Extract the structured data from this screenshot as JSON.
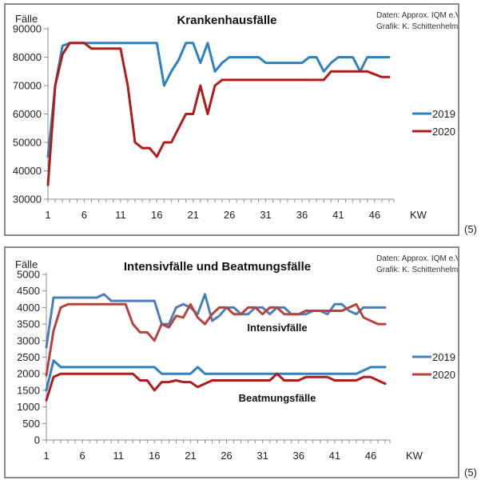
{
  "footnote_ref": "(5)",
  "source": {
    "line1": "Daten: Approx. IQM e.V.",
    "line2": "Grafik: K. Schittenhelm"
  },
  "colors": {
    "top_2019": "#2e82c0",
    "top_2020": "#b01c1c",
    "bottom_int_2019": "#4a7fbb",
    "bottom_int_2020": "#b5443f",
    "bottom_beat_2019": "#2e82c0",
    "bottom_beat_2020": "#b01c1c"
  },
  "chart_data": [
    {
      "type": "line",
      "title": "Krankenhausfälle",
      "ylabel": "Fälle",
      "xlabel": "KW",
      "ylim": [
        30000,
        90000
      ],
      "yticks": [
        30000,
        40000,
        50000,
        60000,
        70000,
        80000,
        90000
      ],
      "ytick_labels": [
        "30000",
        "40000",
        "50000",
        "60000",
        "70000",
        "80000",
        "90000"
      ],
      "xlim": [
        1,
        48
      ],
      "xtick_labels": [
        "1",
        "6",
        "11",
        "16",
        "21",
        "26",
        "31",
        "36",
        "41",
        "46"
      ],
      "xticks": [
        1,
        6,
        11,
        16,
        21,
        26,
        31,
        36,
        41,
        46
      ],
      "grid": false,
      "legend_position": "right",
      "x": [
        1,
        2,
        3,
        4,
        5,
        6,
        7,
        8,
        9,
        10,
        11,
        12,
        13,
        14,
        15,
        16,
        17,
        18,
        19,
        20,
        21,
        22,
        23,
        24,
        25,
        26,
        27,
        28,
        29,
        30,
        31,
        32,
        33,
        34,
        35,
        36,
        37,
        38,
        39,
        40,
        41,
        42,
        43,
        44,
        45,
        46,
        47,
        48
      ],
      "series": [
        {
          "name": "2019",
          "values": [
            45000,
            70000,
            84000,
            85000,
            85000,
            85000,
            85000,
            85000,
            85000,
            85000,
            85000,
            85000,
            85000,
            85000,
            85000,
            85000,
            70000,
            75000,
            79000,
            85000,
            85000,
            78000,
            85000,
            75000,
            78000,
            80000,
            80000,
            80000,
            80000,
            80000,
            78000,
            78000,
            78000,
            78000,
            78000,
            78000,
            80000,
            80000,
            75000,
            78000,
            80000,
            80000,
            80000,
            75000,
            80000,
            80000,
            80000,
            80000
          ]
        },
        {
          "name": "2020",
          "values": [
            35000,
            70000,
            81000,
            85000,
            85000,
            85000,
            83000,
            83000,
            83000,
            83000,
            83000,
            70000,
            50000,
            48000,
            48000,
            45000,
            50000,
            50000,
            55000,
            60000,
            60000,
            70000,
            60000,
            70000,
            72000,
            72000,
            72000,
            72000,
            72000,
            72000,
            72000,
            72000,
            72000,
            72000,
            72000,
            72000,
            72000,
            72000,
            72000,
            75000,
            75000,
            75000,
            75000,
            75000,
            75000,
            74000,
            73000,
            73000
          ]
        }
      ]
    },
    {
      "type": "line",
      "title": "Intensivfälle und Beatmungsfälle",
      "ylabel": "Fälle",
      "xlabel": "KW",
      "ylim": [
        0,
        5000
      ],
      "yticks": [
        0,
        500,
        1000,
        1500,
        2000,
        2500,
        3000,
        3500,
        4000,
        4500,
        5000
      ],
      "ytick_labels": [
        "0",
        "500",
        "1000",
        "1500",
        "2000",
        "2500",
        "3000",
        "3500",
        "4000",
        "4500",
        "5000"
      ],
      "xlim": [
        1,
        48
      ],
      "xticks": [
        1,
        6,
        11,
        16,
        21,
        26,
        31,
        36,
        41,
        46
      ],
      "xtick_labels": [
        "1",
        "6",
        "11",
        "16",
        "21",
        "26",
        "31",
        "36",
        "41",
        "46"
      ],
      "grid": false,
      "legend_position": "right",
      "annotations": [
        "Intensivfälle",
        "Beatmungsfälle"
      ],
      "x": [
        1,
        2,
        3,
        4,
        5,
        6,
        7,
        8,
        9,
        10,
        11,
        12,
        13,
        14,
        15,
        16,
        17,
        18,
        19,
        20,
        21,
        22,
        23,
        24,
        25,
        26,
        27,
        28,
        29,
        30,
        31,
        32,
        33,
        34,
        35,
        36,
        37,
        38,
        39,
        40,
        41,
        42,
        43,
        44,
        45,
        46,
        47,
        48
      ],
      "series": [
        {
          "name": "2019",
          "group": "Intensivfälle",
          "values": [
            2800,
            4300,
            4300,
            4300,
            4300,
            4300,
            4300,
            4300,
            4400,
            4200,
            4200,
            4200,
            4200,
            4200,
            4200,
            4200,
            3500,
            3500,
            4000,
            4100,
            4000,
            3800,
            4400,
            3600,
            3750,
            4000,
            4000,
            3800,
            3800,
            4000,
            4000,
            3800,
            4000,
            4000,
            3800,
            3800,
            3800,
            3900,
            3900,
            3800,
            4100,
            4100,
            3900,
            3800,
            4000,
            4000,
            4000,
            4000
          ]
        },
        {
          "name": "2020",
          "group": "Intensivfälle",
          "values": [
            1950,
            3300,
            4000,
            4100,
            4100,
            4100,
            4100,
            4100,
            4100,
            4100,
            4100,
            4100,
            3500,
            3250,
            3250,
            3000,
            3500,
            3400,
            3750,
            3700,
            4100,
            3700,
            3500,
            3800,
            4000,
            4000,
            3800,
            3800,
            4000,
            4000,
            3800,
            4000,
            4000,
            3800,
            3800,
            3800,
            3900,
            3900,
            3900,
            3900,
            3900,
            3900,
            4000,
            4100,
            3700,
            3600,
            3500,
            3500
          ]
        },
        {
          "name": "2019",
          "group": "Beatmungsfälle",
          "values": [
            1500,
            2400,
            2200,
            2200,
            2200,
            2200,
            2200,
            2200,
            2200,
            2200,
            2200,
            2200,
            2200,
            2200,
            2200,
            2200,
            2000,
            2000,
            2000,
            2000,
            2000,
            2200,
            2000,
            2000,
            2000,
            2000,
            2000,
            2000,
            2000,
            2000,
            2000,
            2000,
            2000,
            2000,
            2000,
            2000,
            2000,
            2000,
            2000,
            2000,
            2000,
            2000,
            2000,
            2000,
            2100,
            2200,
            2200,
            2200
          ]
        },
        {
          "name": "2020",
          "group": "Beatmungsfälle",
          "values": [
            1200,
            1900,
            2000,
            2000,
            2000,
            2000,
            2000,
            2000,
            2000,
            2000,
            2000,
            2000,
            2000,
            1800,
            1800,
            1500,
            1750,
            1750,
            1800,
            1750,
            1750,
            1600,
            1700,
            1800,
            1800,
            1800,
            1800,
            1800,
            1800,
            1800,
            1800,
            1800,
            2000,
            1800,
            1800,
            1800,
            1900,
            1900,
            1900,
            1900,
            1800,
            1800,
            1800,
            1800,
            1900,
            1900,
            1800,
            1700
          ]
        }
      ]
    }
  ]
}
